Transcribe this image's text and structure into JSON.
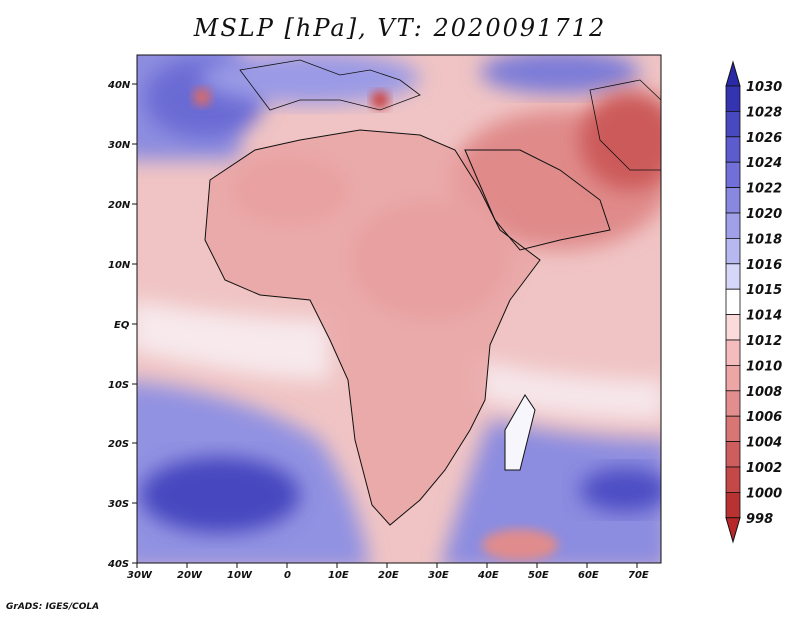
{
  "title": "MSLP [hPa], VT: 2020091712",
  "credit": "GrADS: IGES/COLA",
  "x_axis": {
    "ticks": [
      "30W",
      "20W",
      "10W",
      "0",
      "10E",
      "20E",
      "30E",
      "40E",
      "50E",
      "60E",
      "70E"
    ],
    "range": [
      -30,
      75
    ]
  },
  "y_axis": {
    "ticks": [
      "40N",
      "30N",
      "20N",
      "10N",
      "EQ",
      "10S",
      "20S",
      "30S",
      "40S"
    ],
    "range": [
      -40,
      44
    ]
  },
  "colorbar": {
    "levels": [
      "1030",
      "1028",
      "1026",
      "1024",
      "1022",
      "1020",
      "1018",
      "1016",
      "1015",
      "1014",
      "1012",
      "1010",
      "1008",
      "1006",
      "1004",
      "1002",
      "1000",
      "998"
    ],
    "colors": [
      "#3434b0",
      "#4848c0",
      "#5c5cce",
      "#7070d8",
      "#8888e0",
      "#a0a0e8",
      "#b8b8f0",
      "#d6d6f8",
      "#ffffff",
      "#fadada",
      "#f4bcbc",
      "#eca6a6",
      "#e28e8e",
      "#d87676",
      "#ce5e5e",
      "#c44848",
      "#b83232"
    ]
  },
  "features": {
    "highs": [
      {
        "name": "Azores region low marker",
        "lon": -22,
        "lat": 38
      },
      {
        "name": "Mediterranean low marker",
        "lon": 17,
        "lat": 37
      }
    ]
  }
}
